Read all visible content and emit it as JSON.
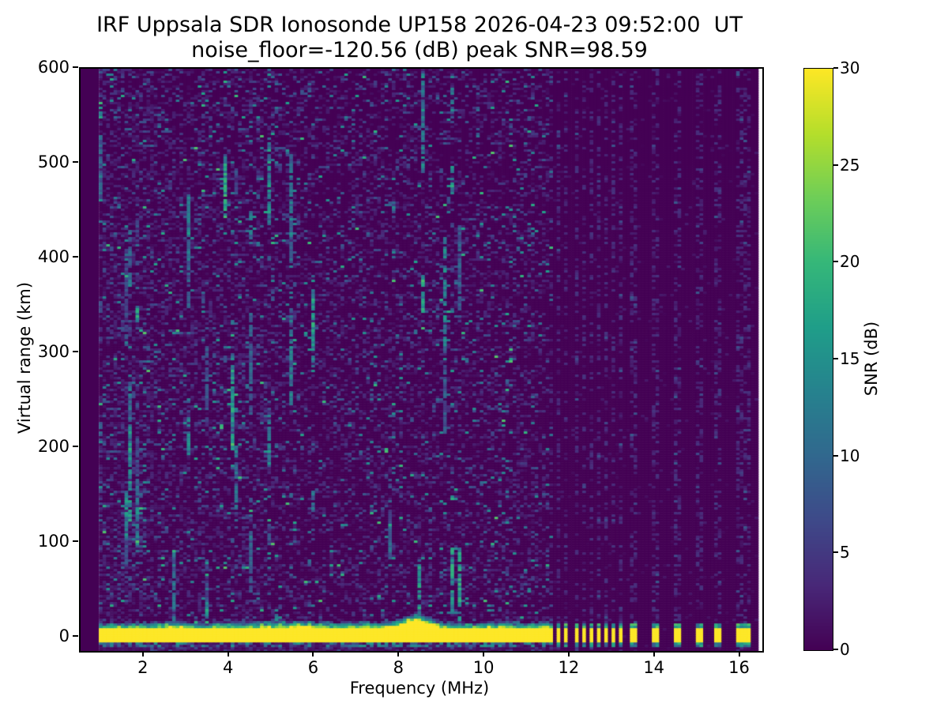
{
  "chart_data": {
    "type": "heatmap",
    "title_line1": "IRF Uppsala SDR Ionosonde UP158 2026-04-23 09:52:00  UT",
    "title_line2": "noise_floor=-120.56 (dB) peak SNR=98.59",
    "xlabel": "Frequency (MHz)",
    "ylabel": "Virtual range (km)",
    "colorbar_label": "SNR (dB)",
    "noise_floor_db": -120.56,
    "peak_snr_db": 98.59,
    "station": "UP158",
    "timestamp_ut": "2026-04-23 09:52:00",
    "xlim": [
      0.5,
      16.51
    ],
    "ylim": [
      -14,
      600
    ],
    "clim": [
      0,
      30
    ],
    "xticks": [
      2,
      4,
      6,
      8,
      10,
      12,
      14,
      16
    ],
    "yticks": [
      0,
      100,
      200,
      300,
      400,
      500,
      600
    ],
    "colorbar_ticks": [
      0,
      5,
      10,
      15,
      20,
      25,
      30
    ],
    "colormap": "viridis",
    "colormap_stops": [
      "#440154",
      "#482878",
      "#3e4989",
      "#31688e",
      "#26828e",
      "#1f9e89",
      "#35b779",
      "#6ece58",
      "#b5de2b",
      "#fde725"
    ],
    "grid": false,
    "legend": "none (colorbar on right)",
    "gen": {
      "seed": 20260423,
      "freq_range": [
        0.93,
        16.38
      ],
      "freq_step_mhz": 0.086,
      "range_step_km": 2.5,
      "sweep_end_mhz": 11.63,
      "ground_band_km": [
        -4,
        9
      ],
      "band_bump": {
        "center_mhz": 8.4,
        "width_mhz": 0.38,
        "extra_km": 9
      },
      "band_top_jitter_km": 4.5,
      "stripe_speckle_density": 0.34,
      "stripes": [
        {
          "f": 11.69,
          "w": 0.05
        },
        {
          "f": 11.91,
          "w": 0.05
        },
        {
          "f": 12.13,
          "w": 0.05
        },
        {
          "f": 12.32,
          "w": 0.05
        },
        {
          "f": 12.5,
          "w": 0.05
        },
        {
          "f": 12.67,
          "w": 0.05
        },
        {
          "f": 12.84,
          "w": 0.05
        },
        {
          "f": 13.0,
          "w": 0.05
        },
        {
          "f": 13.17,
          "w": 0.05
        },
        {
          "f": 13.5,
          "w": 0.09
        },
        {
          "f": 14.0,
          "w": 0.09
        },
        {
          "f": 14.5,
          "w": 0.09
        },
        {
          "f": 15.0,
          "w": 0.09
        },
        {
          "f": 15.5,
          "w": 0.09
        },
        {
          "f": 16.0,
          "w": 0.09
        },
        {
          "f": 16.15,
          "w": 0.06
        }
      ],
      "speckle_density_low_band": 0.48,
      "speckle_density_mid_band": 0.4,
      "speckle_density_high_band": 0.33,
      "hot_column_prob_low": 0.5,
      "hot_column_prob_mid": 0.32,
      "hot_column_prob_high": 0.16
    }
  }
}
